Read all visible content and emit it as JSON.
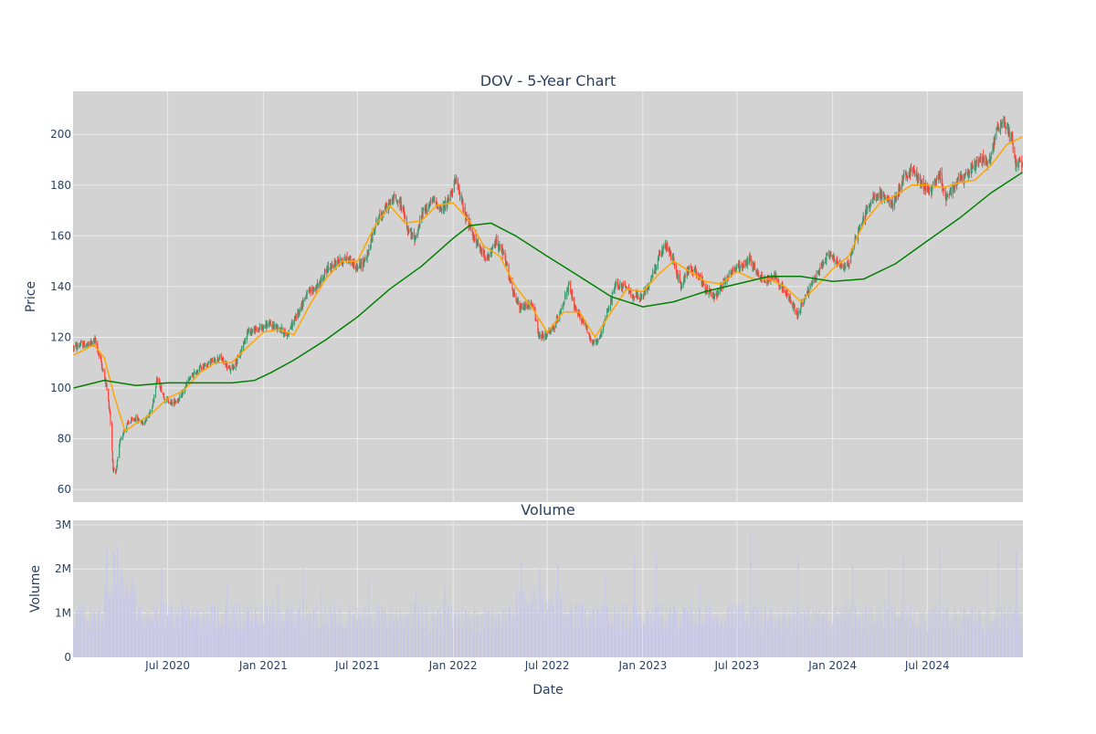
{
  "chart_data": [
    {
      "type": "candlestick",
      "title": "DOV - 5-Year Chart",
      "ylabel": "Price",
      "ylim": [
        55,
        217
      ],
      "yticks": [
        60,
        80,
        100,
        120,
        140,
        160,
        180,
        200
      ],
      "x_range": [
        "2020-01-01",
        "2025-01-01"
      ],
      "colors": {
        "up": "#3d9970",
        "down": "#ff4136",
        "ma_short": "#ffa500",
        "ma_long": "#008000",
        "plot_bg": "#d3d3d3",
        "grid": "#ebebeb"
      },
      "price_path": [
        [
          "2020-01-02",
          116
        ],
        [
          "2020-01-15",
          117
        ],
        [
          "2020-02-01",
          117
        ],
        [
          "2020-02-12",
          119
        ],
        [
          "2020-02-24",
          110
        ],
        [
          "2020-03-05",
          101
        ],
        [
          "2020-03-12",
          90
        ],
        [
          "2020-03-18",
          68
        ],
        [
          "2020-03-23",
          66
        ],
        [
          "2020-04-01",
          80
        ],
        [
          "2020-04-15",
          86
        ],
        [
          "2020-05-01",
          88
        ],
        [
          "2020-05-15",
          86
        ],
        [
          "2020-06-01",
          92
        ],
        [
          "2020-06-10",
          104
        ],
        [
          "2020-06-25",
          96
        ],
        [
          "2020-07-10",
          94
        ],
        [
          "2020-07-25",
          96
        ],
        [
          "2020-08-10",
          103
        ],
        [
          "2020-09-01",
          108
        ],
        [
          "2020-09-20",
          110
        ],
        [
          "2020-10-10",
          112
        ],
        [
          "2020-10-30",
          107
        ],
        [
          "2020-11-15",
          112
        ],
        [
          "2020-12-01",
          122
        ],
        [
          "2020-12-20",
          123
        ],
        [
          "2021-01-10",
          125
        ],
        [
          "2021-01-30",
          124
        ],
        [
          "2021-02-15",
          121
        ],
        [
          "2021-03-05",
          128
        ],
        [
          "2021-03-25",
          137
        ],
        [
          "2021-04-15",
          140
        ],
        [
          "2021-05-05",
          147
        ],
        [
          "2021-05-25",
          150
        ],
        [
          "2021-06-15",
          151
        ],
        [
          "2021-07-01",
          147
        ],
        [
          "2021-07-20",
          152
        ],
        [
          "2021-08-05",
          165
        ],
        [
          "2021-08-25",
          171
        ],
        [
          "2021-09-10",
          175
        ],
        [
          "2021-09-25",
          172
        ],
        [
          "2021-10-05",
          162
        ],
        [
          "2021-10-20",
          159
        ],
        [
          "2021-11-05",
          170
        ],
        [
          "2021-11-25",
          174
        ],
        [
          "2021-12-10",
          170
        ],
        [
          "2021-12-25",
          175
        ],
        [
          "2022-01-04",
          182
        ],
        [
          "2022-01-15",
          176
        ],
        [
          "2022-01-25",
          168
        ],
        [
          "2022-02-05",
          162
        ],
        [
          "2022-02-20",
          155
        ],
        [
          "2022-03-10",
          151
        ],
        [
          "2022-03-25",
          158
        ],
        [
          "2022-04-10",
          152
        ],
        [
          "2022-04-25",
          138
        ],
        [
          "2022-05-10",
          131
        ],
        [
          "2022-05-25",
          133
        ],
        [
          "2022-06-05",
          132
        ],
        [
          "2022-06-15",
          120
        ],
        [
          "2022-06-30",
          121
        ],
        [
          "2022-07-15",
          124
        ],
        [
          "2022-08-01",
          134
        ],
        [
          "2022-08-12",
          140
        ],
        [
          "2022-08-25",
          130
        ],
        [
          "2022-09-10",
          126
        ],
        [
          "2022-09-25",
          118
        ],
        [
          "2022-10-10",
          119
        ],
        [
          "2022-10-25",
          130
        ],
        [
          "2022-11-10",
          141
        ],
        [
          "2022-11-25",
          140
        ],
        [
          "2022-12-10",
          137
        ],
        [
          "2022-12-28",
          135
        ],
        [
          "2023-01-15",
          142
        ],
        [
          "2023-02-01",
          152
        ],
        [
          "2023-02-15",
          156
        ],
        [
          "2023-03-01",
          150
        ],
        [
          "2023-03-15",
          140
        ],
        [
          "2023-03-30",
          147
        ],
        [
          "2023-04-15",
          146
        ],
        [
          "2023-05-01",
          139
        ],
        [
          "2023-05-20",
          136
        ],
        [
          "2023-06-05",
          142
        ],
        [
          "2023-06-25",
          147
        ],
        [
          "2023-07-10",
          148
        ],
        [
          "2023-07-25",
          151
        ],
        [
          "2023-08-10",
          145
        ],
        [
          "2023-08-25",
          142
        ],
        [
          "2023-09-10",
          145
        ],
        [
          "2023-09-25",
          140
        ],
        [
          "2023-10-10",
          135
        ],
        [
          "2023-10-25",
          129
        ],
        [
          "2023-11-10",
          136
        ],
        [
          "2023-11-25",
          142
        ],
        [
          "2023-12-10",
          148
        ],
        [
          "2023-12-25",
          153
        ],
        [
          "2024-01-10",
          149
        ],
        [
          "2024-01-30",
          148
        ],
        [
          "2024-02-15",
          160
        ],
        [
          "2024-03-01",
          167
        ],
        [
          "2024-03-20",
          176
        ],
        [
          "2024-04-05",
          176
        ],
        [
          "2024-04-25",
          172
        ],
        [
          "2024-05-15",
          182
        ],
        [
          "2024-06-01",
          186
        ],
        [
          "2024-06-20",
          181
        ],
        [
          "2024-07-05",
          177
        ],
        [
          "2024-07-25",
          184
        ],
        [
          "2024-08-05",
          175
        ],
        [
          "2024-08-25",
          181
        ],
        [
          "2024-09-10",
          183
        ],
        [
          "2024-09-30",
          188
        ],
        [
          "2024-10-15",
          190
        ],
        [
          "2024-10-30",
          190
        ],
        [
          "2024-11-12",
          202
        ],
        [
          "2024-11-26",
          205
        ],
        [
          "2024-12-10",
          199
        ],
        [
          "2024-12-18",
          189
        ],
        [
          "2024-12-31",
          188
        ]
      ],
      "series": [
        {
          "kind": "ma_short",
          "x": [
            "2020-01-02",
            "2020-02-10",
            "2020-03-01",
            "2020-03-20",
            "2020-04-10",
            "2020-05-01",
            "2020-06-01",
            "2020-07-01",
            "2020-08-01",
            "2020-09-01",
            "2020-10-01",
            "2020-11-01",
            "2020-12-01",
            "2021-01-01",
            "2021-02-01",
            "2021-03-01",
            "2021-04-01",
            "2021-05-01",
            "2021-06-01",
            "2021-07-01",
            "2021-08-01",
            "2021-09-01",
            "2021-10-01",
            "2021-11-01",
            "2021-12-01",
            "2022-01-01",
            "2022-02-01",
            "2022-03-01",
            "2022-04-01",
            "2022-05-01",
            "2022-06-01",
            "2022-07-01",
            "2022-08-01",
            "2022-09-01",
            "2022-10-01",
            "2022-11-01",
            "2022-12-01",
            "2023-01-01",
            "2023-02-01",
            "2023-03-01",
            "2023-04-01",
            "2023-05-01",
            "2023-06-01",
            "2023-07-01",
            "2023-08-01",
            "2023-09-01",
            "2023-10-01",
            "2023-11-01",
            "2023-12-01",
            "2024-01-01",
            "2024-02-01",
            "2024-03-01",
            "2024-04-01",
            "2024-05-01",
            "2024-06-01",
            "2024-07-01",
            "2024-08-01",
            "2024-09-01",
            "2024-10-01",
            "2024-11-01",
            "2024-12-01",
            "2024-12-31"
          ],
          "values": [
            113,
            117,
            112,
            97,
            83,
            86,
            90,
            96,
            99,
            106,
            110,
            110,
            116,
            122,
            123,
            121,
            133,
            143,
            150,
            150,
            163,
            172,
            165,
            166,
            172,
            173,
            166,
            156,
            152,
            140,
            132,
            122,
            130,
            130,
            120,
            130,
            139,
            138,
            145,
            150,
            146,
            142,
            141,
            146,
            143,
            143,
            140,
            134,
            140,
            147,
            152,
            165,
            173,
            176,
            180,
            180,
            179,
            181,
            182,
            188,
            196,
            199
          ]
        },
        {
          "kind": "ma_long",
          "x": [
            "2020-01-02",
            "2020-03-01",
            "2020-05-01",
            "2020-07-01",
            "2020-09-01",
            "2020-11-01",
            "2020-12-15",
            "2021-01-15",
            "2021-03-01",
            "2021-05-01",
            "2021-07-01",
            "2021-09-01",
            "2021-11-01",
            "2022-01-01",
            "2022-02-01",
            "2022-03-15",
            "2022-05-01",
            "2022-07-01",
            "2022-09-01",
            "2022-11-01",
            "2023-01-01",
            "2023-03-01",
            "2023-05-01",
            "2023-07-01",
            "2023-09-01",
            "2023-11-01",
            "2024-01-01",
            "2024-03-01",
            "2024-05-01",
            "2024-07-01",
            "2024-09-01",
            "2024-11-01",
            "2024-12-31"
          ],
          "values": [
            100,
            103,
            101,
            102,
            102,
            102,
            103,
            106,
            111,
            119,
            128,
            139,
            148,
            159,
            164,
            165,
            160,
            152,
            144,
            136,
            132,
            134,
            138,
            141,
            144,
            144,
            142,
            143,
            149,
            158,
            167,
            177,
            185
          ]
        }
      ]
    },
    {
      "type": "bar",
      "title": "Volume",
      "ylabel": "Volume",
      "xlabel": "Date",
      "ylim": [
        0,
        3100000
      ],
      "yticks": [
        0,
        1000000,
        2000000,
        3000000
      ],
      "ytick_labels": [
        "0",
        "1M",
        "2M",
        "3M"
      ],
      "xticks": [
        "2020-07-01",
        "2021-01-01",
        "2021-07-01",
        "2022-01-01",
        "2022-07-01",
        "2023-01-01",
        "2023-07-01",
        "2024-01-01",
        "2024-07-01"
      ],
      "xtick_labels": [
        "Jul 2020",
        "Jan 2021",
        "Jul 2021",
        "Jan 2022",
        "Jul 2022",
        "Jan 2023",
        "Jul 2023",
        "Jan 2024",
        "Jul 2024"
      ],
      "bar_color": "#c9c9e6",
      "spikes": [
        [
          "2020-03-06",
          2500000
        ],
        [
          "2020-03-20",
          2400000
        ],
        [
          "2020-03-27",
          2500000
        ],
        [
          "2020-04-03",
          2000000
        ],
        [
          "2020-04-24",
          1700000
        ],
        [
          "2020-06-19",
          2000000
        ],
        [
          "2020-10-23",
          1700000
        ],
        [
          "2021-01-29",
          1700000
        ],
        [
          "2021-03-19",
          2000000
        ],
        [
          "2021-04-23",
          1600000
        ],
        [
          "2021-07-23",
          1800000
        ],
        [
          "2021-10-22",
          1500000
        ],
        [
          "2021-12-17",
          1600000
        ],
        [
          "2022-05-13",
          2200000
        ],
        [
          "2022-06-17",
          2000000
        ],
        [
          "2022-07-22",
          2100000
        ],
        [
          "2022-10-21",
          1900000
        ],
        [
          "2022-12-16",
          2300000
        ],
        [
          "2023-01-27",
          2400000
        ],
        [
          "2023-04-21",
          1700000
        ],
        [
          "2023-07-28",
          2900000
        ],
        [
          "2023-10-27",
          2300000
        ],
        [
          "2024-01-26",
          1300000
        ],
        [
          "2024-02-09",
          2100000
        ],
        [
          "2024-04-19",
          2000000
        ],
        [
          "2024-05-17",
          2400000
        ],
        [
          "2024-07-26",
          2500000
        ],
        [
          "2024-10-25",
          1900000
        ],
        [
          "2024-11-15",
          2600000
        ],
        [
          "2024-12-20",
          2400000
        ]
      ]
    }
  ]
}
